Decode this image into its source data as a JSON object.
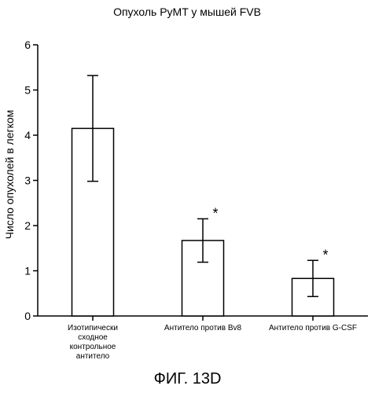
{
  "figure_label": "ФИГ. 13D",
  "chart_data": {
    "type": "bar",
    "title": "Опухоль PyMT у мышей FVB",
    "xlabel": "",
    "ylabel": "Число опухолей в легком",
    "ylim": [
      0,
      6
    ],
    "yticks": [
      "0",
      "1",
      "2",
      "3",
      "4",
      "5",
      "6"
    ],
    "grid": false,
    "categories": [
      [
        "Изотипически",
        "сходное",
        "контрольное",
        "антитело"
      ],
      [
        "Антитело против Bv8"
      ],
      [
        "Антитело против G-CSF"
      ]
    ],
    "values": [
      4.15,
      1.67,
      0.83
    ],
    "error": [
      1.17,
      0.48,
      0.4
    ],
    "significance": [
      "",
      "*",
      "*"
    ],
    "colors": {
      "bar_fill": "#ffffff",
      "bar_stroke": "#000000",
      "axis": "#000000"
    }
  }
}
